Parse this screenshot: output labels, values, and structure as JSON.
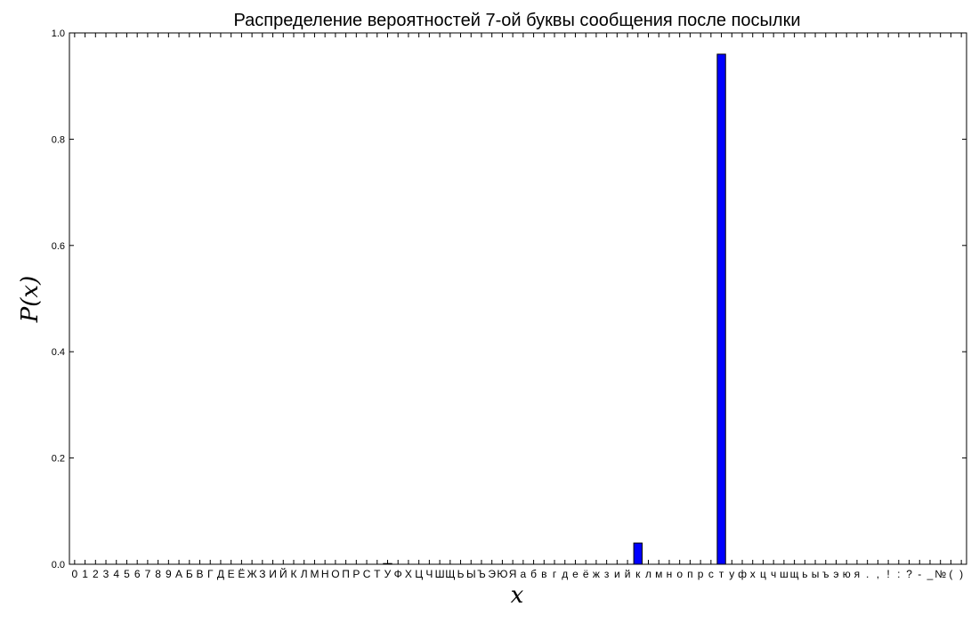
{
  "chart_data": {
    "type": "bar",
    "title": "Распределение вероятностей 7-ой буквы сообщения после посылки",
    "xlabel": "x",
    "ylabel": "P(x)",
    "ylim": [
      0,
      1.0
    ],
    "yticks": [
      "0.0",
      "0.2",
      "0.4",
      "0.6",
      "0.8",
      "1.0"
    ],
    "grid": false,
    "categories": [
      "0",
      "1",
      "2",
      "3",
      "4",
      "5",
      "6",
      "7",
      "8",
      "9",
      "А",
      "Б",
      "В",
      "Г",
      "Д",
      "Е",
      "Ё",
      "Ж",
      "З",
      "И",
      "Й",
      "К",
      "Л",
      "М",
      "Н",
      "О",
      "П",
      "Р",
      "С",
      "Т",
      "У",
      "Ф",
      "Х",
      "Ц",
      "Ч",
      "Ш",
      "Щ",
      "Ь",
      "Ы",
      "Ъ",
      "Э",
      "Ю",
      "Я",
      "а",
      "б",
      "в",
      "г",
      "д",
      "е",
      "ё",
      "ж",
      "з",
      "и",
      "й",
      "к",
      "л",
      "м",
      "н",
      "о",
      "п",
      "р",
      "с",
      "т",
      "у",
      "ф",
      "х",
      "ц",
      "ч",
      "ш",
      "щ",
      "ь",
      "ы",
      "ъ",
      "э",
      "ю",
      "я",
      ".",
      ",",
      "!",
      ":",
      "?",
      "-",
      "_",
      "№",
      "(",
      ")"
    ],
    "values": [
      0,
      0,
      0,
      0,
      0,
      0,
      0,
      0,
      0,
      0,
      0,
      0,
      0,
      0,
      0,
      0,
      0,
      0,
      0,
      0,
      0,
      0,
      0,
      0,
      0,
      0,
      0,
      0,
      0,
      0,
      0.001,
      0,
      0,
      0,
      0,
      0,
      0,
      0,
      0,
      0,
      0,
      0,
      0,
      0,
      0,
      0,
      0,
      0,
      0,
      0,
      0,
      0,
      0,
      0,
      0.04,
      0,
      0,
      0,
      0,
      0,
      0,
      0,
      0.96,
      0,
      0,
      0,
      0,
      0,
      0,
      0,
      0,
      0,
      0,
      0,
      0,
      0,
      0,
      0,
      0,
      0,
      0,
      0,
      0,
      0,
      0,
      0
    ],
    "bar_color": "#0000ff"
  }
}
